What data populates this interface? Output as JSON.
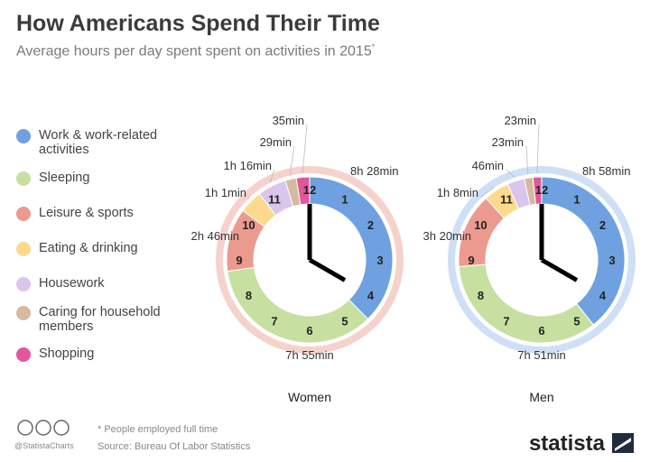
{
  "title": "How Americans Spend Their Time",
  "subtitle": "Average hours per day spent spent on activities in 2015",
  "subtitle_mark": "*",
  "clock_numbers": [
    12,
    1,
    2,
    3,
    4,
    5,
    6,
    7,
    8,
    9,
    10,
    11
  ],
  "chart_data": [
    {
      "type": "pie",
      "donut": true,
      "title": "Women",
      "categories": [
        "Work & work-related activities",
        "Sleeping",
        "Leisure & sports",
        "Eating & drinking",
        "Housework",
        "Caring for household members",
        "Shopping"
      ],
      "values": [
        508,
        475,
        166,
        61,
        76,
        29,
        35
      ],
      "value_labels": [
        "8h 28min",
        "7h 55min",
        "2h 46min",
        "1h 1min",
        "1h 16min",
        "29min",
        "35min"
      ],
      "colors": [
        "#6fa1e0",
        "#c7e0a1",
        "#ec9a8f",
        "#fcd98c",
        "#dac5ec",
        "#d6b9a1",
        "#e0579b"
      ],
      "ring_color": "#f6d2cd"
    },
    {
      "type": "pie",
      "donut": true,
      "title": "Men",
      "categories": [
        "Work & work-related activities",
        "Sleeping",
        "Leisure & sports",
        "Eating & drinking",
        "Housework",
        "Caring for household members",
        "Shopping"
      ],
      "values": [
        538,
        471,
        200,
        68,
        46,
        23,
        23
      ],
      "value_labels": [
        "8h 58min",
        "7h 51min",
        "3h 20min",
        "1h 8min",
        "46min",
        "23min",
        "23min"
      ],
      "colors": [
        "#6fa1e0",
        "#c7e0a1",
        "#ec9a8f",
        "#fcd98c",
        "#dac5ec",
        "#d6b9a1",
        "#e0579b"
      ],
      "ring_color": "#cfdff5"
    }
  ],
  "footer": {
    "note": "* People employed full time",
    "source": "Source: Bureau Of Labor Statistics",
    "handle": "@StatistaCharts",
    "brand": "statista"
  }
}
